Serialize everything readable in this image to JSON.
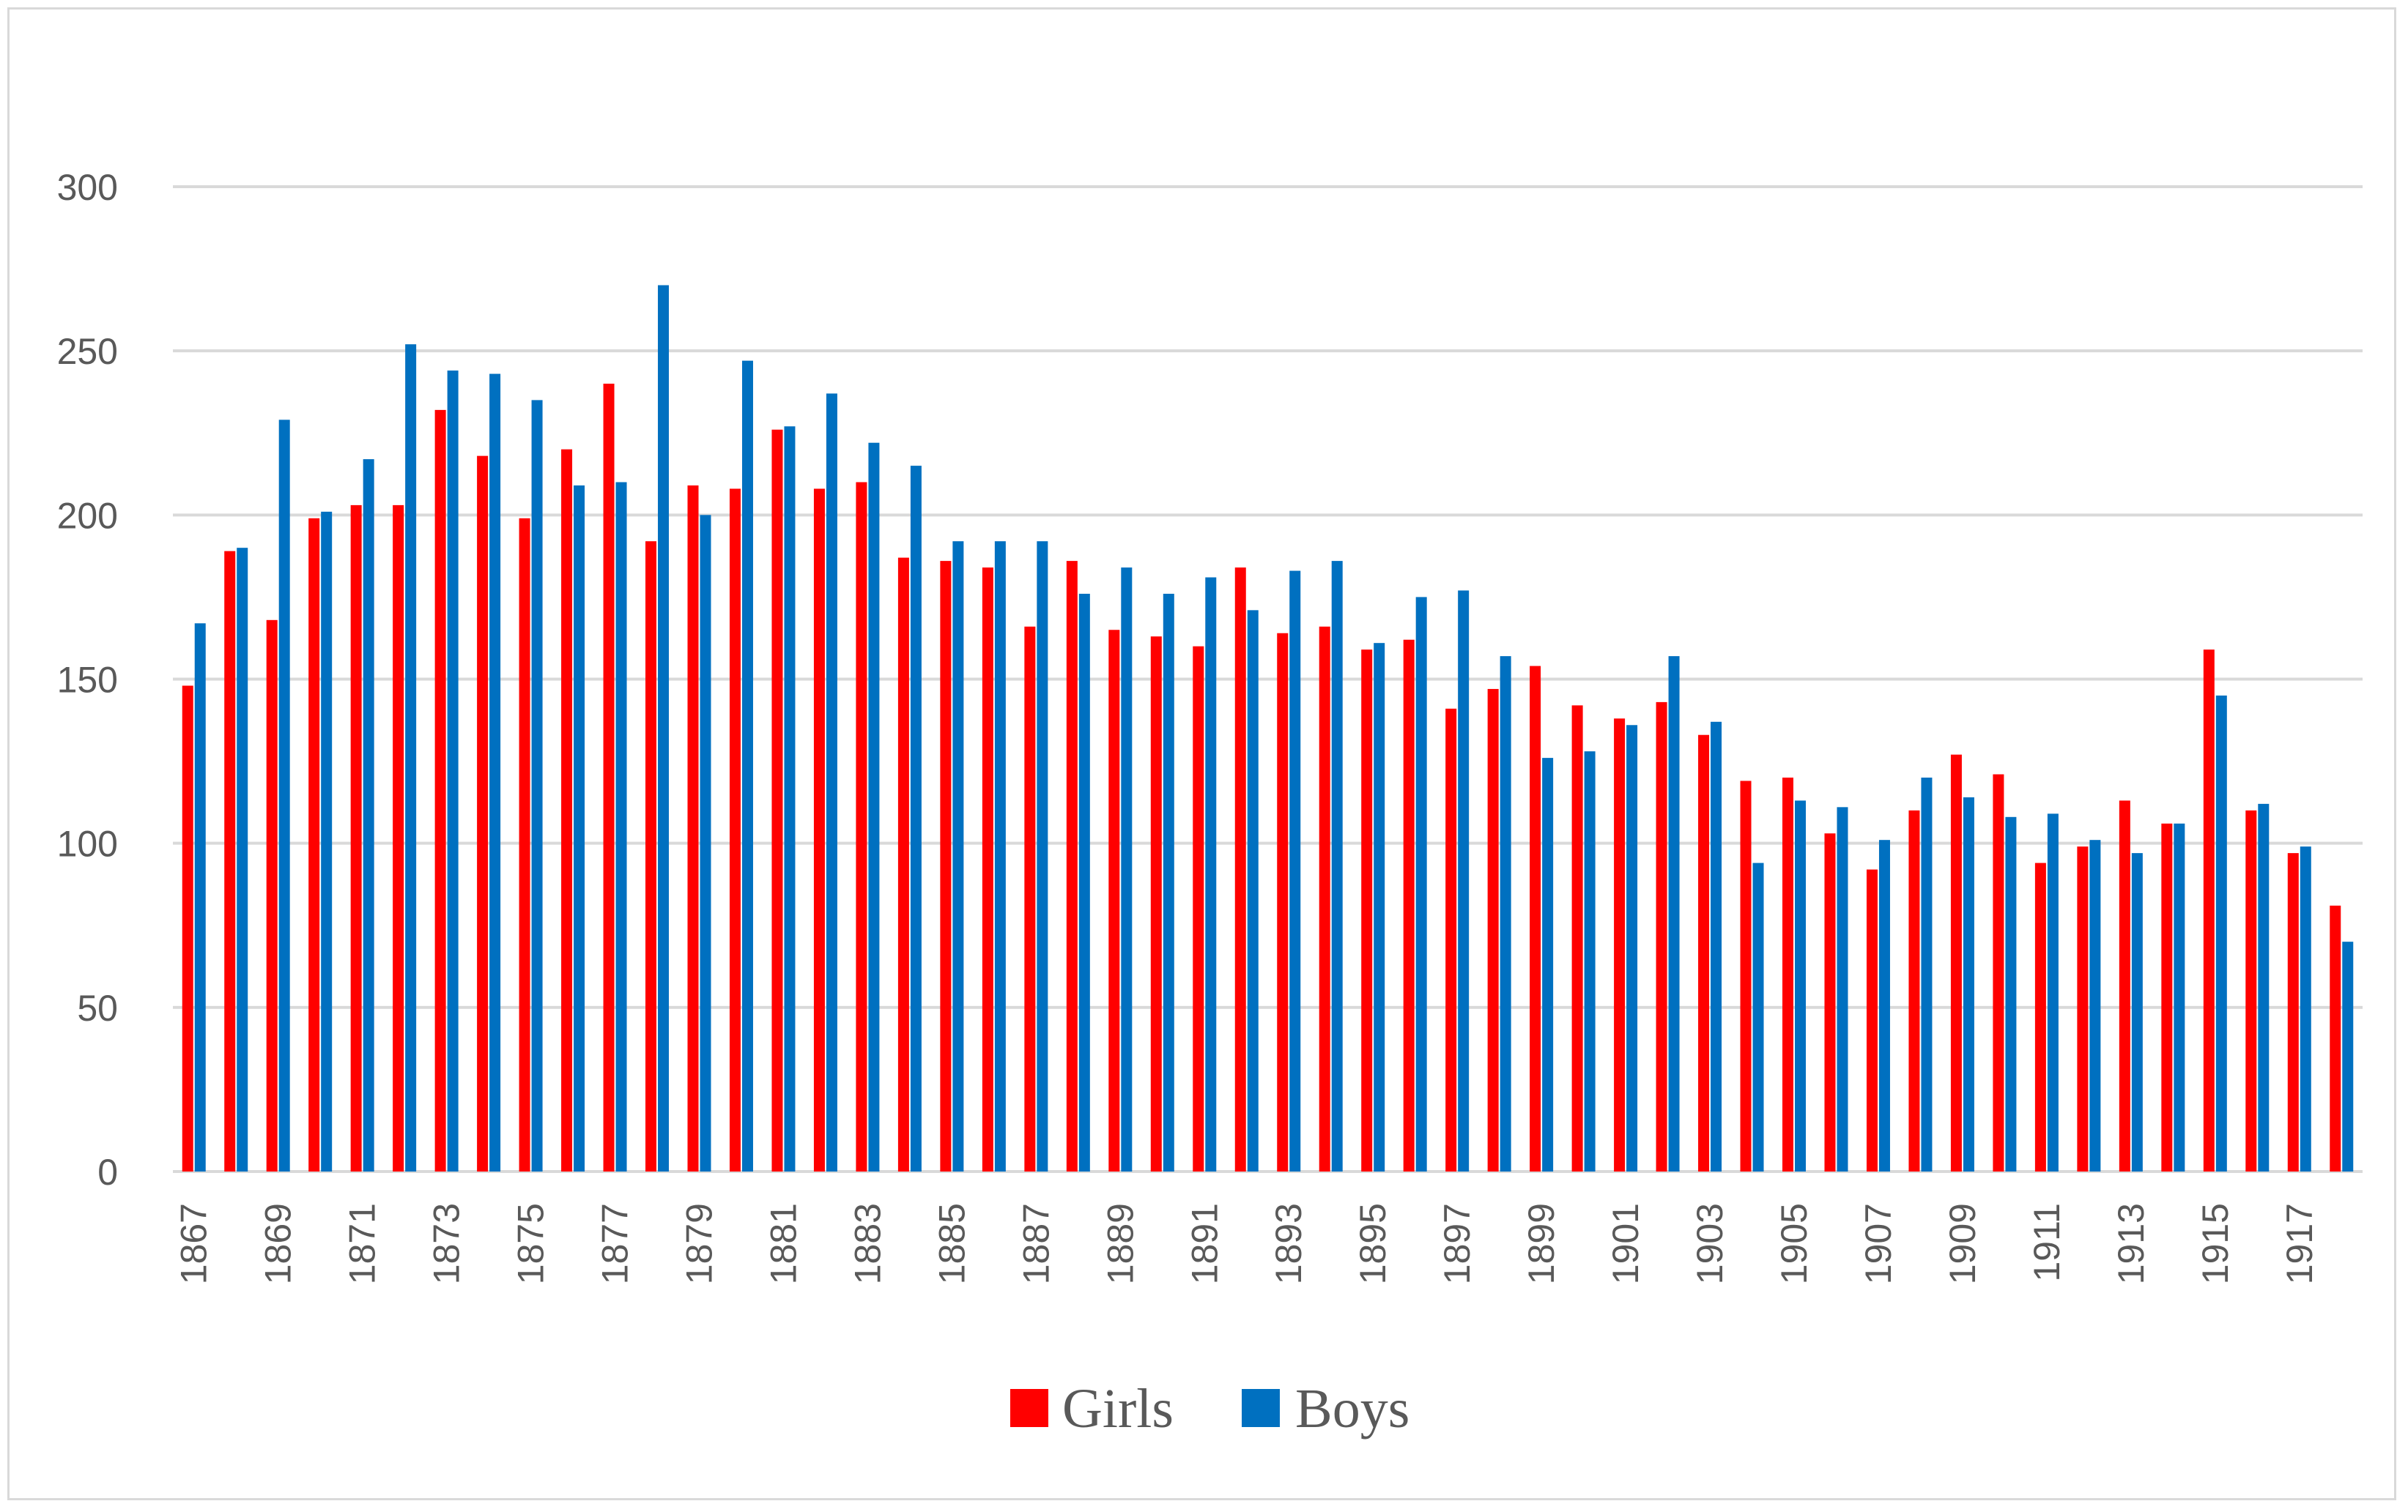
{
  "chart_data": {
    "type": "bar",
    "title": "",
    "xlabel": "",
    "ylabel": "",
    "ylim": [
      0,
      300
    ],
    "y_ticks": [
      0,
      50,
      100,
      150,
      200,
      250,
      300
    ],
    "grid": true,
    "legend_position": "bottom",
    "categories": [
      "1867",
      "1868",
      "1869",
      "1870",
      "1871",
      "1872",
      "1873",
      "1874",
      "1875",
      "1876",
      "1877",
      "1878",
      "1879",
      "1880",
      "1881",
      "1882",
      "1883",
      "1884",
      "1885",
      "1886",
      "1887",
      "1888",
      "1889",
      "1890",
      "1891",
      "1892",
      "1893",
      "1894",
      "1895",
      "1896",
      "1897",
      "1898",
      "1899",
      "1900",
      "1901",
      "1902",
      "1903",
      "1904",
      "1905",
      "1906",
      "1907",
      "1908",
      "1909",
      "1910",
      "1911",
      "1912",
      "1913",
      "1914",
      "1915",
      "1916",
      "1917",
      "1918"
    ],
    "x_tick_labels": [
      "1867",
      "",
      "1869",
      "",
      "1871",
      "",
      "1873",
      "",
      "1875",
      "",
      "1877",
      "",
      "1879",
      "",
      "1881",
      "",
      "1883",
      "",
      "1885",
      "",
      "1887",
      "",
      "1889",
      "",
      "1891",
      "",
      "1893",
      "",
      "1895",
      "",
      "1897",
      "",
      "1899",
      "",
      "1901",
      "",
      "1903",
      "",
      "1905",
      "",
      "1907",
      "",
      "1909",
      "",
      "1911",
      "",
      "1913",
      "",
      "1915",
      "",
      "1917",
      ""
    ],
    "series": [
      {
        "name": "Girls",
        "color": "#ff0000",
        "values": [
          148,
          189,
          168,
          199,
          203,
          203,
          232,
          218,
          199,
          220,
          240,
          192,
          209,
          208,
          226,
          208,
          210,
          187,
          186,
          184,
          166,
          186,
          165,
          163,
          160,
          184,
          164,
          166,
          159,
          162,
          141,
          147,
          154,
          142,
          138,
          143,
          133,
          119,
          120,
          103,
          92,
          110,
          127,
          121,
          94,
          99,
          113,
          106,
          159,
          110,
          97,
          81
        ]
      },
      {
        "name": "Boys",
        "color": "#0070c0",
        "values": [
          167,
          190,
          229,
          201,
          217,
          252,
          244,
          243,
          235,
          209,
          210,
          270,
          200,
          247,
          227,
          237,
          222,
          215,
          192,
          192,
          192,
          176,
          184,
          176,
          181,
          171,
          183,
          186,
          161,
          175,
          177,
          157,
          126,
          128,
          136,
          157,
          137,
          94,
          113,
          111,
          101,
          120,
          114,
          108,
          109,
          101,
          97,
          106,
          145,
          112,
          99,
          70
        ]
      }
    ]
  }
}
